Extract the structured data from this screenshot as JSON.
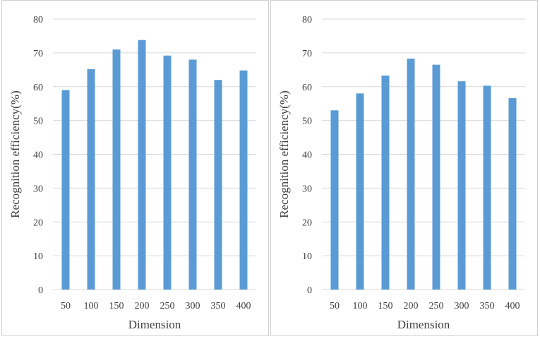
{
  "chart_data": [
    {
      "type": "bar",
      "categories": [
        "50",
        "100",
        "150",
        "200",
        "250",
        "300",
        "350",
        "400"
      ],
      "values": [
        59,
        65.2,
        71,
        73.8,
        69.2,
        68,
        62,
        64.8
      ],
      "xlabel": "Dimension",
      "ylabel": "Recognition efficiency(%)",
      "ylim": [
        0,
        80
      ],
      "yticks": [
        0,
        10,
        20,
        30,
        40,
        50,
        60,
        70,
        80
      ],
      "grid": true,
      "color": "#5b9bd5"
    },
    {
      "type": "bar",
      "categories": [
        "50",
        "100",
        "150",
        "200",
        "250",
        "300",
        "350",
        "400"
      ],
      "values": [
        53,
        58,
        63.3,
        68.3,
        66.5,
        61.6,
        60.3,
        56.6
      ],
      "xlabel": "Dimension",
      "ylabel": "Recognition efficiency(%)",
      "ylim": [
        0,
        80
      ],
      "yticks": [
        0,
        10,
        20,
        30,
        40,
        50,
        60,
        70,
        80
      ],
      "grid": true,
      "color": "#5b9bd5"
    }
  ]
}
